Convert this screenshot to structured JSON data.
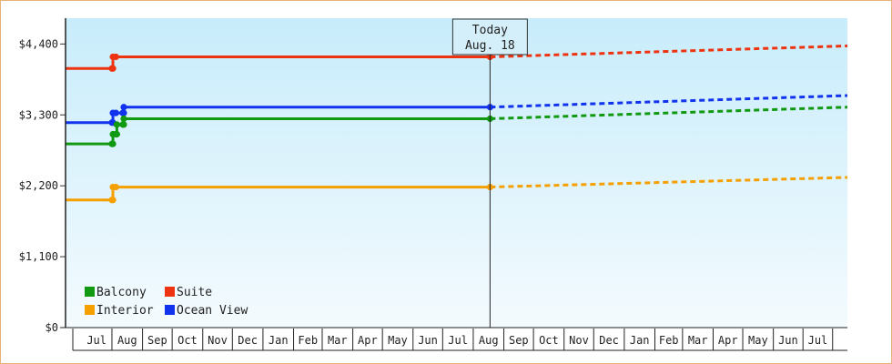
{
  "chart_data": {
    "type": "line",
    "title": "",
    "xlabel": "",
    "ylabel": "",
    "ylim": [
      0,
      4800
    ],
    "yticks": [
      {
        "value": 0,
        "label": "$0"
      },
      {
        "value": 1100,
        "label": "$1,100"
      },
      {
        "value": 2200,
        "label": "$2,200"
      },
      {
        "value": 3300,
        "label": "$3,300"
      },
      {
        "value": 4400,
        "label": "$4,400"
      }
    ],
    "xlim": [
      "2015-06-15",
      "2017-08-15"
    ],
    "month_labels": [
      "Jul",
      "Aug",
      "Sep",
      "Oct",
      "Nov",
      "Dec",
      "Jan",
      "Feb",
      "Mar",
      "Apr",
      "May",
      "Jun",
      "Jul",
      "Aug",
      "Sep",
      "Oct",
      "Nov",
      "Dec",
      "Jan",
      "Feb",
      "Mar",
      "Apr",
      "May",
      "Jun",
      "Jul"
    ],
    "month_starts": [
      "2015-07-01",
      "2015-08-01",
      "2015-09-01",
      "2015-10-01",
      "2015-11-01",
      "2015-12-01",
      "2016-01-01",
      "2016-02-01",
      "2016-03-01",
      "2016-04-01",
      "2016-05-01",
      "2016-06-01",
      "2016-07-01",
      "2016-08-01",
      "2016-09-01",
      "2016-10-01",
      "2016-11-01",
      "2016-12-01",
      "2017-01-01",
      "2017-02-01",
      "2017-03-01",
      "2017-04-01",
      "2017-05-01",
      "2017-06-01",
      "2017-07-01"
    ],
    "today": {
      "date": "2016-08-18",
      "label_line1": "Today",
      "label_line2": "Aug. 18"
    },
    "grid": false,
    "legend_position": "bottom-left",
    "series": [
      {
        "name": "Suite",
        "color": "#ee3311",
        "points": [
          [
            "2015-06-15",
            4020
          ],
          [
            "2015-08-01",
            4020
          ],
          [
            "2015-08-02",
            4200
          ],
          [
            "2015-08-05",
            4200
          ],
          [
            "2016-08-18",
            4200
          ]
        ],
        "forecast": [
          [
            "2016-08-18",
            4200
          ],
          [
            "2017-08-15",
            4370
          ]
        ]
      },
      {
        "name": "Ocean View",
        "color": "#1133ee",
        "points": [
          [
            "2015-06-15",
            3180
          ],
          [
            "2015-08-01",
            3180
          ],
          [
            "2015-08-02",
            3330
          ],
          [
            "2015-08-05",
            3330
          ],
          [
            "2015-08-12",
            3330
          ],
          [
            "2015-08-13",
            3420
          ],
          [
            "2016-08-18",
            3420
          ]
        ],
        "forecast": [
          [
            "2016-08-18",
            3420
          ],
          [
            "2017-08-15",
            3600
          ]
        ]
      },
      {
        "name": "Balcony",
        "color": "#119911",
        "points": [
          [
            "2015-06-15",
            2850
          ],
          [
            "2015-08-01",
            2850
          ],
          [
            "2015-08-02",
            3000
          ],
          [
            "2015-08-05",
            3000
          ],
          [
            "2015-08-06",
            3150
          ],
          [
            "2015-08-12",
            3150
          ],
          [
            "2015-08-13",
            3240
          ],
          [
            "2016-08-18",
            3240
          ]
        ],
        "forecast": [
          [
            "2016-08-18",
            3240
          ],
          [
            "2017-08-15",
            3420
          ]
        ]
      },
      {
        "name": "Interior",
        "color": "#f5a000",
        "points": [
          [
            "2015-06-15",
            1980
          ],
          [
            "2015-08-01",
            1980
          ],
          [
            "2015-08-02",
            2180
          ],
          [
            "2015-08-05",
            2180
          ],
          [
            "2016-08-18",
            2180
          ]
        ],
        "forecast": [
          [
            "2016-08-18",
            2180
          ],
          [
            "2017-08-15",
            2330
          ]
        ]
      }
    ],
    "legend": [
      {
        "name": "Balcony",
        "color": "#119911"
      },
      {
        "name": "Suite",
        "color": "#ee3311"
      },
      {
        "name": "Interior",
        "color": "#f5a000"
      },
      {
        "name": "Ocean View",
        "color": "#1133ee"
      }
    ]
  }
}
